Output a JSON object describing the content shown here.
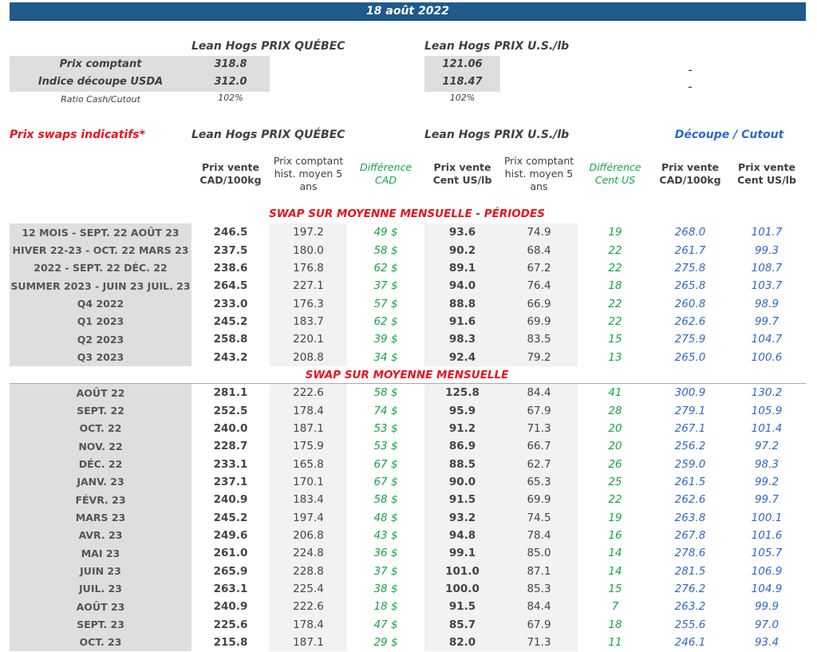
{
  "date": "18 août 2022",
  "spot": {
    "quebec_title": "Lean Hogs PRIX QUÉBEC",
    "us_title": "Lean Hogs PRIX U.S./lb",
    "rows": [
      {
        "label": "Prix comptant",
        "quebec": "318.8",
        "us": "121.06",
        "extra": "-"
      },
      {
        "label": "Indice découpe USDA",
        "quebec": "312.0",
        "us": "118.47",
        "extra": "-"
      }
    ],
    "ratio_label": "Ratio Cash/Cutout",
    "ratio_quebec": "102%",
    "ratio_us": "102%"
  },
  "swaps": {
    "title": "Prix swaps indicatifs*",
    "quebec_title": "Lean Hogs PRIX QUÉBEC",
    "us_title": "Lean Hogs PRIX U.S./lb",
    "cutout_title": "Découpe / Cutout",
    "columns": [
      [
        "Prix vente",
        "CAD/100kg"
      ],
      [
        "Prix comptant",
        "hist. moyen 5",
        "ans"
      ],
      [
        "Différence",
        "CAD"
      ],
      [
        "Prix vente",
        "Cent US/lb"
      ],
      [
        "Prix comptant",
        "hist. moyen 5",
        "ans"
      ],
      [
        "Différence",
        "Cent US"
      ],
      [
        "Prix vente",
        "CAD/100kg"
      ],
      [
        "Prix vente",
        "Cent US/lb"
      ]
    ],
    "section_periods": "SWAP SUR MOYENNE MENSUELLE - PÉRIODES",
    "periods": [
      [
        "12 MOIS - SEPT. 22 AOÛT 23",
        "246.5",
        "197.2",
        "49 $",
        "93.6",
        "74.9",
        "19",
        "268.0",
        "101.7"
      ],
      [
        "HIVER 22-23 - OCT. 22 MARS 23",
        "237.5",
        "180.0",
        "58 $",
        "90.2",
        "68.4",
        "22",
        "261.7",
        "99.3"
      ],
      [
        "2022 - SEPT. 22 DÉC. 22",
        "238.6",
        "176.8",
        "62 $",
        "89.1",
        "67.2",
        "22",
        "275.8",
        "108.7"
      ],
      [
        "SUMMER 2023 - JUIN 23 JUIL. 23",
        "264.5",
        "227.1",
        "37 $",
        "94.0",
        "76.4",
        "18",
        "265.8",
        "103.7"
      ],
      [
        "Q4 2022",
        "233.0",
        "176.3",
        "57 $",
        "88.8",
        "66.9",
        "22",
        "260.8",
        "98.9"
      ],
      [
        "Q1 2023",
        "245.2",
        "183.7",
        "62 $",
        "91.6",
        "69.9",
        "22",
        "262.6",
        "99.7"
      ],
      [
        "Q2 2023",
        "258.8",
        "220.1",
        "39 $",
        "98.3",
        "83.5",
        "15",
        "275.9",
        "104.7"
      ],
      [
        "Q3 2023",
        "243.2",
        "208.8",
        "34 $",
        "92.4",
        "79.2",
        "13",
        "265.0",
        "100.6"
      ]
    ],
    "section_monthly": "SWAP SUR MOYENNE MENSUELLE",
    "monthly": [
      [
        "AOÛT 22",
        "281.1",
        "222.6",
        "58 $",
        "125.8",
        "84.4",
        "41",
        "300.9",
        "130.2"
      ],
      [
        "SEPT. 22",
        "252.5",
        "178.4",
        "74 $",
        "95.9",
        "67.9",
        "28",
        "279.1",
        "105.9"
      ],
      [
        "OCT. 22",
        "240.0",
        "187.1",
        "53 $",
        "91.2",
        "71.3",
        "20",
        "267.1",
        "101.4"
      ],
      [
        "NOV. 22",
        "228.7",
        "175.9",
        "53 $",
        "86.9",
        "66.7",
        "20",
        "256.2",
        "97.2"
      ],
      [
        "DÉC. 22",
        "233.1",
        "165.8",
        "67 $",
        "88.5",
        "62.7",
        "26",
        "259.0",
        "98.3"
      ],
      [
        "JANV. 23",
        "237.1",
        "170.1",
        "67 $",
        "90.0",
        "65.3",
        "25",
        "261.5",
        "99.2"
      ],
      [
        "FÉVR. 23",
        "240.9",
        "183.4",
        "58 $",
        "91.5",
        "69.9",
        "22",
        "262.6",
        "99.7"
      ],
      [
        "MARS 23",
        "245.2",
        "197.4",
        "48 $",
        "93.2",
        "74.5",
        "19",
        "263.8",
        "100.1"
      ],
      [
        "AVR. 23",
        "249.6",
        "206.8",
        "43 $",
        "94.8",
        "78.4",
        "16",
        "267.8",
        "101.6"
      ],
      [
        "MAI 23",
        "261.0",
        "224.8",
        "36 $",
        "99.1",
        "85.0",
        "14",
        "278.6",
        "105.7"
      ],
      [
        "JUIN 23",
        "265.9",
        "228.8",
        "37 $",
        "101.0",
        "87.1",
        "14",
        "281.5",
        "106.9"
      ],
      [
        "JUIL. 23",
        "263.1",
        "225.4",
        "38 $",
        "100.0",
        "85.3",
        "15",
        "276.2",
        "104.9"
      ],
      [
        "AOÛT 23",
        "240.9",
        "222.6",
        "18 $",
        "91.5",
        "84.4",
        "7",
        "263.2",
        "99.9"
      ],
      [
        "SEPT. 23",
        "225.6",
        "178.4",
        "47 $",
        "85.7",
        "67.9",
        "18",
        "255.6",
        "97.0"
      ],
      [
        "OCT. 23",
        "215.8",
        "187.1",
        "29 $",
        "82.0",
        "71.3",
        "11",
        "246.1",
        "93.4"
      ]
    ]
  },
  "colors": {
    "header_bar": "#1e5a8c",
    "difference": "#13a54a",
    "cutout": "#2f68c8",
    "section": "#e8141e"
  }
}
